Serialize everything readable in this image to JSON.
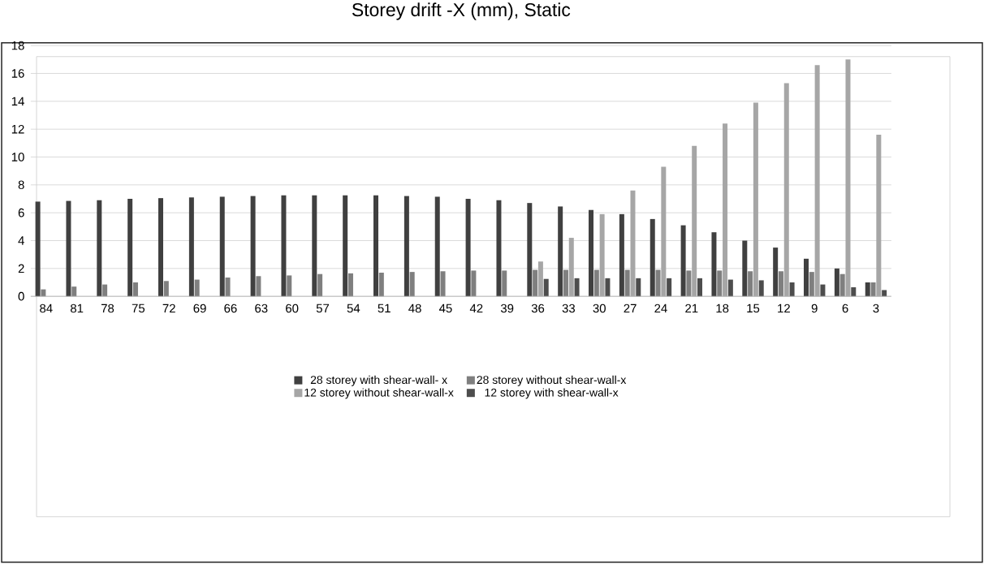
{
  "chart_data": {
    "type": "bar",
    "title": "Storey drift -X (mm), Static",
    "categories": [
      "84",
      "81",
      "78",
      "75",
      "72",
      "69",
      "66",
      "63",
      "60",
      "57",
      "54",
      "51",
      "48",
      "45",
      "42",
      "39",
      "36",
      "33",
      "30",
      "27",
      "24",
      "21",
      "18",
      "15",
      "12",
      "9",
      "6",
      "3"
    ],
    "series": [
      {
        "name": "28 storey with shear-wall- x",
        "color": "#404040",
        "values": [
          6.8,
          6.85,
          6.9,
          7.0,
          7.05,
          7.1,
          7.15,
          7.2,
          7.25,
          7.25,
          7.25,
          7.25,
          7.2,
          7.15,
          7.0,
          6.9,
          6.7,
          6.45,
          6.2,
          5.9,
          5.55,
          5.1,
          4.6,
          4.0,
          3.5,
          2.7,
          2.0,
          1.0
        ]
      },
      {
        "name": "28 storey without shear-wall-x",
        "color": "#7f7f7f",
        "values": [
          0.5,
          0.7,
          0.85,
          1.0,
          1.1,
          1.2,
          1.35,
          1.45,
          1.5,
          1.6,
          1.65,
          1.7,
          1.75,
          1.8,
          1.85,
          1.85,
          1.9,
          1.9,
          1.9,
          1.9,
          1.9,
          1.85,
          1.85,
          1.8,
          1.8,
          1.75,
          1.6,
          1.0
        ]
      },
      {
        "name": "12 storey without shear-wall-x",
        "color": "#a6a6a6",
        "values": [
          null,
          null,
          null,
          null,
          null,
          null,
          null,
          null,
          null,
          null,
          null,
          null,
          null,
          null,
          null,
          null,
          2.5,
          4.2,
          5.9,
          7.6,
          9.3,
          10.8,
          12.4,
          13.9,
          15.3,
          16.6,
          17.0,
          11.6
        ]
      },
      {
        "name": "12 storey with shear-wall-x",
        "color": "#4d4d4d",
        "values": [
          null,
          null,
          null,
          null,
          null,
          null,
          null,
          null,
          null,
          null,
          null,
          null,
          null,
          null,
          null,
          null,
          1.25,
          1.3,
          1.3,
          1.3,
          1.3,
          1.3,
          1.2,
          1.15,
          1.0,
          0.85,
          0.65,
          0.45
        ]
      }
    ],
    "ylim": [
      0,
      18
    ],
    "yticks": [
      0,
      2,
      4,
      6,
      8,
      10,
      12,
      14,
      16,
      18
    ],
    "grid": "y",
    "legend": "bottom"
  }
}
